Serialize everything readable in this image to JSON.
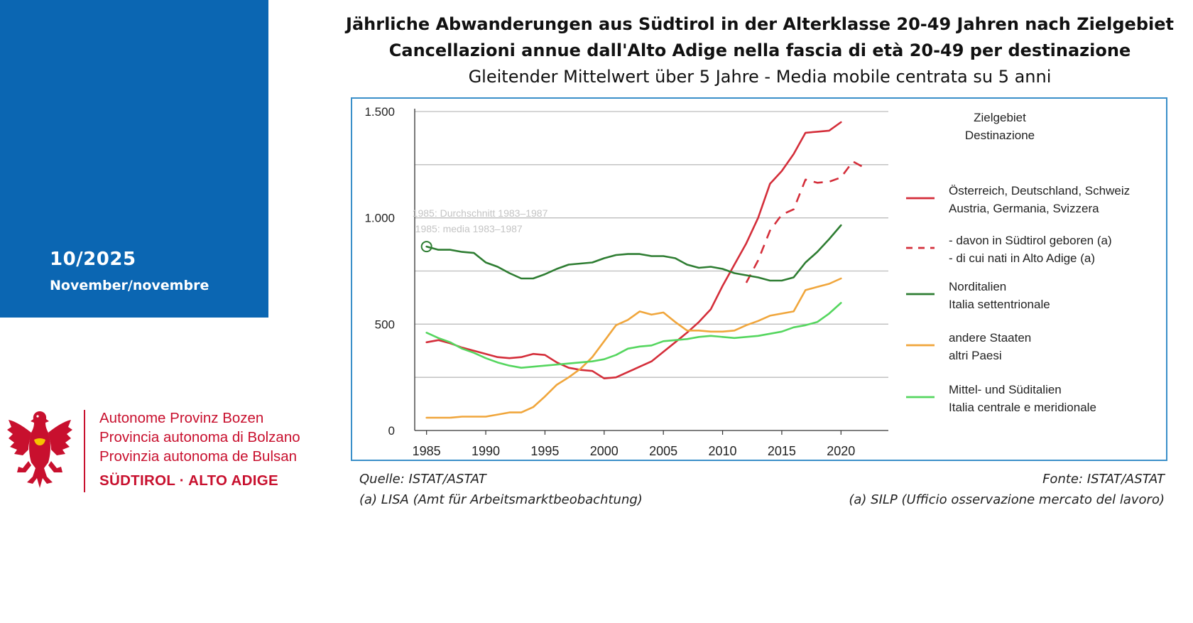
{
  "sidebar": {
    "issue_date": "10/2025",
    "issue_month": "November/novembre",
    "panel_color": "#0b66b2"
  },
  "logo": {
    "icon": "tyrolean-eagle-icon",
    "line1": "Autonome Provinz Bozen",
    "line2": "Provincia autonoma di Bolzano",
    "line3": "Provinzia autonoma de Bulsan",
    "line4": "SÜDTIROL · ALTO ADIGE",
    "color": "#c8102e"
  },
  "header": {
    "title_de": "Jährliche Abwanderungen aus Südtirol in der Alterklasse 20-49 Jahren nach Zielgebiet",
    "title_it": "Cancellazioni annue dall'Alto Adige nella fascia di età 20-49 per destinazione",
    "subtitle": "Gleitender Mittelwert über 5 Jahre - Media mobile centrata su 5 anni"
  },
  "footer": {
    "source_de": "Quelle: ISTAT/ASTAT",
    "note_de": "(a) LISA (Amt für Arbeitsmarktbeobachtung)",
    "source_it": "Fonte: ISTAT/ASTAT",
    "note_it": "(a) SILP (Ufficio osservazione mercato del lavoro)"
  },
  "chart_data": {
    "type": "line",
    "title": "Jährliche Abwanderungen aus Südtirol in der Alterklasse 20-49 Jahren nach Zielgebiet",
    "xlabel": "",
    "ylabel": "",
    "xlim": [
      1984,
      2024
    ],
    "ylim": [
      0,
      1500
    ],
    "grid": true,
    "x_ticks": [
      1985,
      1990,
      1995,
      2000,
      2005,
      2010,
      2015,
      2020
    ],
    "y_ticks": [
      0,
      250,
      500,
      750,
      1000,
      1250,
      1500
    ],
    "y_tick_labels": [
      "0",
      "",
      "500",
      "",
      "1.000",
      "",
      "1.500"
    ],
    "legend_title_de": "Zielgebiet",
    "legend_title_it": "Destinazione",
    "legend_position": "right",
    "annotation": {
      "text_de": "1985: Durchschnitt 1983–1987",
      "text_it": "1985: media 1983–1987",
      "x": 1985,
      "y": 865
    },
    "series": [
      {
        "name_de": "Österreich, Deutschland, Schweiz",
        "name_it": "Austria, Germania, Svizzera",
        "color": "#d42e3a",
        "dashed": false,
        "x": [
          1985,
          1986,
          1987,
          1988,
          1989,
          1990,
          1991,
          1992,
          1993,
          1994,
          1995,
          1996,
          1997,
          1998,
          1999,
          2000,
          2001,
          2002,
          2003,
          2004,
          2005,
          2006,
          2007,
          2008,
          2009,
          2010,
          2011,
          2012,
          2013,
          2014,
          2015,
          2016,
          2017,
          2018,
          2019,
          2020
        ],
        "values": [
          415,
          425,
          410,
          390,
          375,
          360,
          345,
          340,
          345,
          360,
          355,
          320,
          295,
          285,
          280,
          245,
          250,
          275,
          300,
          325,
          370,
          415,
          460,
          510,
          570,
          680,
          780,
          880,
          1000,
          1160,
          1220,
          1300,
          1400,
          1405,
          1410,
          1450
        ]
      },
      {
        "name_de": "- davon in Südtirol geboren (a)",
        "name_it": "- di cui nati in Alto Adige (a)",
        "color": "#d42e3a",
        "dashed": true,
        "x": [
          2012,
          2013,
          2014,
          2015,
          2016,
          2017,
          2018,
          2019,
          2020,
          2021,
          2022
        ],
        "values": [
          695,
          800,
          940,
          1015,
          1040,
          1180,
          1165,
          1170,
          1190,
          1265,
          1235
        ]
      },
      {
        "name_de": "Norditalien",
        "name_it": "Italia settentrionale",
        "color": "#2e7d32",
        "dashed": false,
        "x": [
          1985,
          1986,
          1987,
          1988,
          1989,
          1990,
          1991,
          1992,
          1993,
          1994,
          1995,
          1996,
          1997,
          1998,
          1999,
          2000,
          2001,
          2002,
          2003,
          2004,
          2005,
          2006,
          2007,
          2008,
          2009,
          2010,
          2011,
          2012,
          2013,
          2014,
          2015,
          2016,
          2017,
          2018,
          2019,
          2020
        ],
        "values": [
          865,
          850,
          850,
          840,
          835,
          790,
          770,
          740,
          715,
          715,
          735,
          760,
          780,
          785,
          790,
          810,
          825,
          830,
          830,
          820,
          820,
          810,
          780,
          765,
          770,
          760,
          740,
          730,
          720,
          705,
          705,
          720,
          790,
          840,
          900,
          965
        ]
      },
      {
        "name_de": "andere Staaten",
        "name_it": "altri Paesi",
        "color": "#f0a63c",
        "dashed": false,
        "x": [
          1985,
          1986,
          1987,
          1988,
          1989,
          1990,
          1991,
          1992,
          1993,
          1994,
          1995,
          1996,
          1997,
          1998,
          1999,
          2000,
          2001,
          2002,
          2003,
          2004,
          2005,
          2006,
          2007,
          2008,
          2009,
          2010,
          2011,
          2012,
          2013,
          2014,
          2015,
          2016,
          2017,
          2018,
          2019,
          2020
        ],
        "values": [
          60,
          60,
          60,
          65,
          65,
          65,
          75,
          85,
          85,
          110,
          160,
          215,
          250,
          290,
          345,
          420,
          495,
          520,
          560,
          545,
          555,
          510,
          470,
          470,
          465,
          465,
          470,
          495,
          515,
          540,
          550,
          560,
          660,
          675,
          690,
          715
        ]
      },
      {
        "name_de": "Mittel- und Süditalien",
        "name_it": "Italia centrale e meridionale",
        "color": "#55d65f",
        "dashed": false,
        "x": [
          1985,
          1986,
          1987,
          1988,
          1989,
          1990,
          1991,
          1992,
          1993,
          1994,
          1995,
          1996,
          1997,
          1998,
          1999,
          2000,
          2001,
          2002,
          2003,
          2004,
          2005,
          2006,
          2007,
          2008,
          2009,
          2010,
          2011,
          2012,
          2013,
          2014,
          2015,
          2016,
          2017,
          2018,
          2019,
          2020
        ],
        "values": [
          460,
          435,
          415,
          385,
          365,
          340,
          320,
          305,
          295,
          300,
          305,
          310,
          315,
          320,
          325,
          335,
          355,
          385,
          395,
          400,
          420,
          425,
          430,
          440,
          445,
          440,
          435,
          440,
          445,
          455,
          465,
          485,
          495,
          510,
          550,
          600
        ]
      }
    ]
  }
}
